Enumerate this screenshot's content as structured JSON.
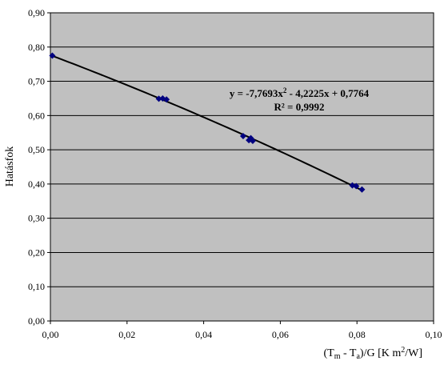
{
  "chart_data": {
    "type": "scatter",
    "ylabel": "Hatásfok",
    "xlabel": {
      "prefix": "(T",
      "sub1": "m",
      "mid": " - T",
      "sub2": "a",
      "after": ")/G  [K m",
      "sup": "2",
      "suffix": "/W]"
    },
    "xlim": [
      0,
      0.1
    ],
    "ylim": [
      0,
      0.9
    ],
    "x_ticks": [
      "0,00",
      "0,02",
      "0,04",
      "0,06",
      "0,08",
      "0,10"
    ],
    "y_ticks": [
      "0,00",
      "0,10",
      "0,20",
      "0,30",
      "0,40",
      "0,50",
      "0,60",
      "0,70",
      "0,80",
      "0,90"
    ],
    "grid": "horizontal",
    "plot_background": "#c0c0c0",
    "marker_color": "#000080",
    "marker": "diamond",
    "trendline": {
      "type": "polynomial",
      "coefficients": {
        "a2": -7.7693,
        "a1": -4.2225,
        "a0": 0.7764
      },
      "equation_parts": [
        "y = -7,7693x",
        "2",
        " - 4,2225x + 0,7764"
      ],
      "r2_label": "R² = 0,9992",
      "color": "#000000"
    },
    "series": [
      {
        "points": [
          [
            0.0005,
            0.775
          ],
          [
            0.0283,
            0.649
          ],
          [
            0.0293,
            0.65
          ],
          [
            0.0303,
            0.647
          ],
          [
            0.0503,
            0.54
          ],
          [
            0.0518,
            0.528
          ],
          [
            0.0523,
            0.534
          ],
          [
            0.0528,
            0.526
          ],
          [
            0.0788,
            0.396
          ],
          [
            0.0798,
            0.394
          ],
          [
            0.0813,
            0.384
          ]
        ]
      }
    ]
  }
}
